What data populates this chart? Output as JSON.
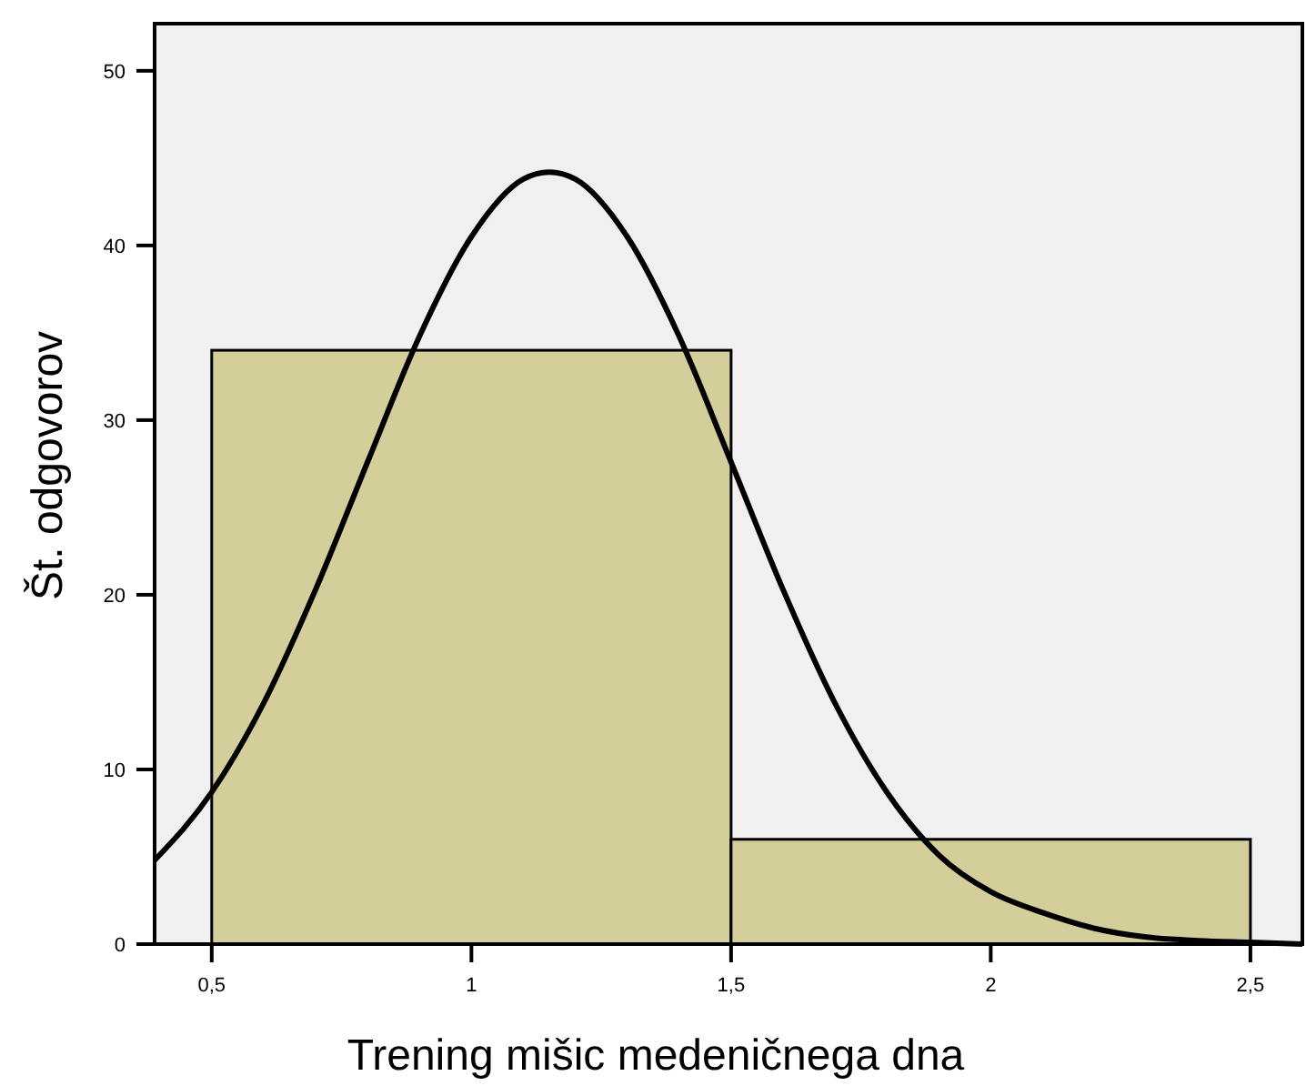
{
  "chart_data": {
    "type": "histogram",
    "xlabel": "Trening mišic medeničnega dna",
    "ylabel": "Št. odgovorov",
    "bins": [
      0.5,
      1.5,
      2.5
    ],
    "values": [
      34,
      6
    ],
    "color": "#d3ce9a",
    "xlim": [
      0.39,
      2.6
    ],
    "ylim": [
      0,
      52.7
    ],
    "xticks": [
      {
        "value": 0.5,
        "label": "0,5"
      },
      1,
      {
        "value": 1.5,
        "label": "1,5"
      },
      2,
      {
        "value": 2.5,
        "label": "2,5"
      }
    ],
    "yticks": [
      0,
      10,
      20,
      30,
      40,
      50
    ],
    "grid": false,
    "series": [
      {
        "type": "line",
        "color": "#000000",
        "x": [
          0.39,
          0.5,
          0.6,
          0.7,
          0.8,
          0.9,
          1.0,
          1.1,
          1.15,
          1.2,
          1.3,
          1.4,
          1.5,
          1.6,
          1.7,
          1.8,
          1.9,
          2.0,
          2.1,
          2.2,
          2.3,
          2.4,
          2.5,
          2.6
        ],
        "values": [
          4.8,
          8.7,
          13.8,
          20.3,
          27.6,
          34.8,
          40.5,
          43.8,
          44.2,
          43.8,
          40.5,
          34.8,
          27.6,
          20.3,
          13.8,
          8.7,
          5.1,
          3.0,
          1.8,
          0.9,
          0.4,
          0.2,
          0.1,
          0
        ]
      }
    ]
  }
}
